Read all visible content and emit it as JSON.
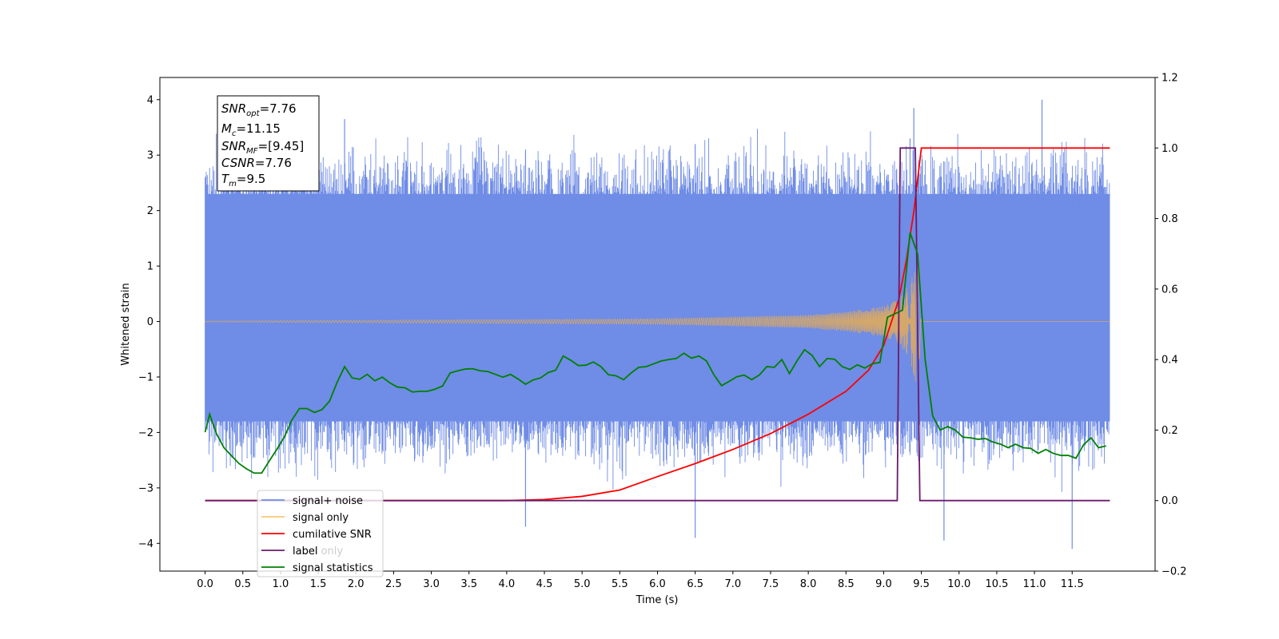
{
  "chart_data": {
    "type": "line",
    "xlabel": "Time (s)",
    "ylabel_left": "Whitened strain",
    "ylabel_right": "",
    "xlim": [
      -0.6,
      12.6
    ],
    "ylim_left": [
      -4.5,
      4.4
    ],
    "ylim_right": [
      -0.2,
      1.2
    ],
    "x_ticks": [
      "0.0",
      "0.5",
      "1.0",
      "1.5",
      "2.0",
      "2.5",
      "3.0",
      "3.5",
      "4.0",
      "4.5",
      "5.0",
      "5.5",
      "6.0",
      "6.5",
      "7.0",
      "7.5",
      "8.0",
      "8.5",
      "9.0",
      "9.5",
      "10.0",
      "10.5",
      "11.0",
      "11.5"
    ],
    "y_ticks_left": [
      "4",
      "3",
      "2",
      "1",
      "0",
      "−1",
      "−2",
      "−3",
      "−4"
    ],
    "y_ticks_right": [
      "1.2",
      "1.0",
      "0.8",
      "0.6",
      "0.4",
      "0.2",
      "0.0",
      "−0.2"
    ],
    "grid": false,
    "legend_position": "lower-left",
    "info_box": {
      "snr_opt": {
        "main": "SNR",
        "sub": "opt",
        "value": "=7.76"
      },
      "mc": {
        "main": "M",
        "sub": "c",
        "value": "=11.15"
      },
      "snr_mf": {
        "main": "SNR",
        "sub": "MF",
        "value": "=[9.45]"
      },
      "csnr": {
        "main": "CSNR",
        "value": "=7.76"
      },
      "tm": {
        "main": "T",
        "sub": "m",
        "value": "=9.5"
      }
    },
    "series": [
      {
        "name": "signal+ noise",
        "axis": "left",
        "color": "#6f8ce6",
        "kind": "noisy_band",
        "x_range": [
          0.0,
          12.0
        ],
        "typical_envelope": [
          -1.8,
          2.3
        ],
        "peak_high": 4.0,
        "peak_low": -4.1
      },
      {
        "name": "signal only",
        "axis": "left",
        "color": "#f5b041",
        "kind": "chirp",
        "x_range": [
          0.0,
          12.0
        ],
        "merger_time": 9.45,
        "envelope": [
          [
            0.0,
            0.01
          ],
          [
            6.0,
            0.05
          ],
          [
            8.0,
            0.12
          ],
          [
            8.5,
            0.18
          ],
          [
            9.0,
            0.28
          ],
          [
            9.2,
            0.4
          ],
          [
            9.35,
            0.7
          ],
          [
            9.45,
            1.25
          ],
          [
            9.5,
            0.0
          ],
          [
            12.0,
            0.0
          ]
        ]
      },
      {
        "name": "cumilative SNR",
        "axis": "right",
        "color": "#ff0000",
        "x": [
          0.0,
          4.0,
          4.5,
          5.0,
          5.5,
          6.0,
          6.5,
          7.0,
          7.5,
          8.0,
          8.5,
          8.8,
          9.0,
          9.2,
          9.3,
          9.4,
          9.5,
          10.0,
          11.0,
          12.0
        ],
        "values": [
          0.0,
          0.0,
          0.003,
          0.012,
          0.03,
          0.068,
          0.105,
          0.145,
          0.19,
          0.245,
          0.31,
          0.37,
          0.44,
          0.57,
          0.68,
          0.82,
          1.0,
          1.0,
          1.0,
          1.0
        ]
      },
      {
        "name": "label",
        "axis": "right",
        "color": "#6a1b6a",
        "x": [
          0.0,
          9.18,
          9.22,
          9.42,
          9.48,
          12.0
        ],
        "values": [
          0.0,
          0.0,
          1.0,
          1.0,
          0.0,
          0.0
        ]
      },
      {
        "name": "label only",
        "axis": "right",
        "color": "#cccccc",
        "hidden": true
      },
      {
        "name": "signal statistics",
        "axis": "right",
        "color": "#008000",
        "x": [
          0.0,
          0.06,
          0.15,
          0.25,
          0.35,
          0.45,
          0.55,
          0.65,
          0.75,
          0.85,
          0.95,
          1.05,
          1.15,
          1.25,
          1.35,
          1.45,
          1.55,
          1.65,
          1.75,
          1.85,
          1.95,
          2.05,
          2.15,
          2.25,
          2.35,
          2.45,
          2.55,
          2.65,
          2.75,
          2.85,
          2.95,
          3.05,
          3.15,
          3.25,
          3.35,
          3.45,
          3.55,
          3.65,
          3.75,
          3.85,
          3.95,
          4.05,
          4.15,
          4.25,
          4.35,
          4.45,
          4.55,
          4.65,
          4.75,
          4.85,
          4.95,
          5.05,
          5.15,
          5.25,
          5.35,
          5.45,
          5.55,
          5.65,
          5.75,
          5.85,
          5.95,
          6.05,
          6.15,
          6.25,
          6.35,
          6.45,
          6.55,
          6.65,
          6.75,
          6.85,
          6.95,
          7.05,
          7.15,
          7.25,
          7.35,
          7.45,
          7.55,
          7.65,
          7.75,
          7.85,
          7.95,
          8.05,
          8.15,
          8.25,
          8.35,
          8.45,
          8.55,
          8.65,
          8.75,
          8.85,
          8.95,
          9.05,
          9.15,
          9.25,
          9.35,
          9.45,
          9.55,
          9.65,
          9.75,
          9.85,
          9.95,
          10.05,
          10.15,
          10.25,
          10.35,
          10.45,
          10.55,
          10.65,
          10.75,
          10.85,
          10.95,
          11.05,
          11.15,
          11.25,
          11.35,
          11.45,
          11.55,
          11.65,
          11.75,
          11.85,
          11.95
        ],
        "values": [
          0.194,
          0.245,
          0.19,
          0.15,
          0.127,
          0.105,
          0.09,
          0.078,
          0.078,
          0.112,
          0.145,
          0.18,
          0.228,
          0.261,
          0.261,
          0.25,
          0.258,
          0.282,
          0.335,
          0.38,
          0.348,
          0.344,
          0.358,
          0.34,
          0.35,
          0.334,
          0.322,
          0.32,
          0.308,
          0.31,
          0.31,
          0.316,
          0.325,
          0.362,
          0.368,
          0.373,
          0.374,
          0.368,
          0.366,
          0.358,
          0.35,
          0.358,
          0.345,
          0.33,
          0.342,
          0.348,
          0.363,
          0.37,
          0.41,
          0.398,
          0.383,
          0.384,
          0.393,
          0.38,
          0.357,
          0.354,
          0.343,
          0.362,
          0.378,
          0.38,
          0.388,
          0.396,
          0.4,
          0.403,
          0.418,
          0.404,
          0.41,
          0.396,
          0.356,
          0.326,
          0.338,
          0.351,
          0.356,
          0.343,
          0.356,
          0.38,
          0.378,
          0.4,
          0.36,
          0.396,
          0.428,
          0.412,
          0.38,
          0.403,
          0.401,
          0.38,
          0.372,
          0.385,
          0.376,
          0.388,
          0.392,
          0.52,
          0.53,
          0.54,
          0.76,
          0.7,
          0.4,
          0.24,
          0.2,
          0.21,
          0.2,
          0.18,
          0.178,
          0.174,
          0.176,
          0.166,
          0.16,
          0.15,
          0.16,
          0.15,
          0.148,
          0.134,
          0.145,
          0.134,
          0.128,
          0.128,
          0.12,
          0.158,
          0.178,
          0.15,
          0.155
        ]
      }
    ]
  }
}
